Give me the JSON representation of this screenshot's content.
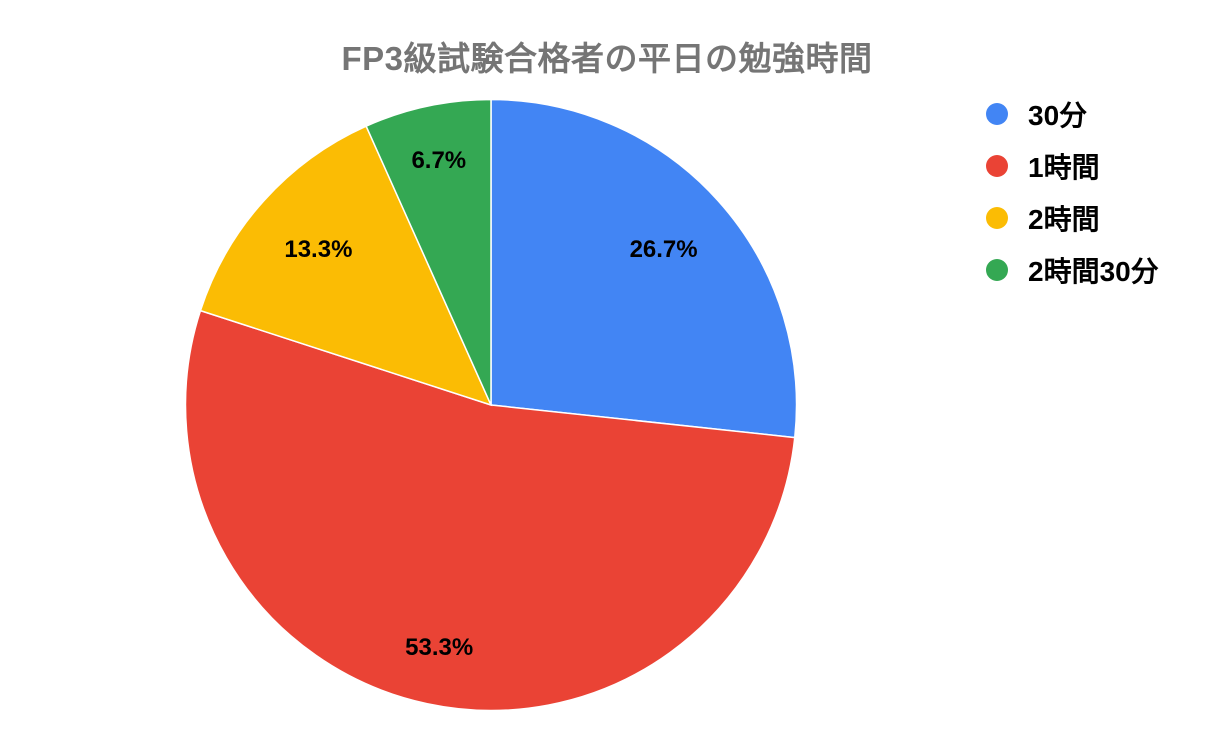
{
  "page": {
    "background_color": "#ffffff"
  },
  "chart_data": {
    "type": "pie",
    "title": "FP3級試験合格者の平日の勉強時間",
    "title_color": "#757575",
    "categories": [
      "30分",
      "1時間",
      "2時間",
      "2時間30分"
    ],
    "values": [
      26.7,
      53.3,
      13.3,
      6.7
    ],
    "slice_labels": [
      "26.7%",
      "53.3%",
      "13.3%",
      "6.7%"
    ],
    "colors": [
      "#4285F4",
      "#EA4335",
      "#FBBC04",
      "#34A853"
    ],
    "slice_label_color": "#000000",
    "start_angle_deg": 0,
    "direction": "clockwise",
    "total": 100,
    "legend": {
      "position": "right",
      "items": [
        {
          "label": "30分",
          "color": "#4285F4"
        },
        {
          "label": "1時間",
          "color": "#EA4335"
        },
        {
          "label": "2時間",
          "color": "#FBBC04"
        },
        {
          "label": "2時間30分",
          "color": "#34A853"
        }
      ]
    }
  }
}
